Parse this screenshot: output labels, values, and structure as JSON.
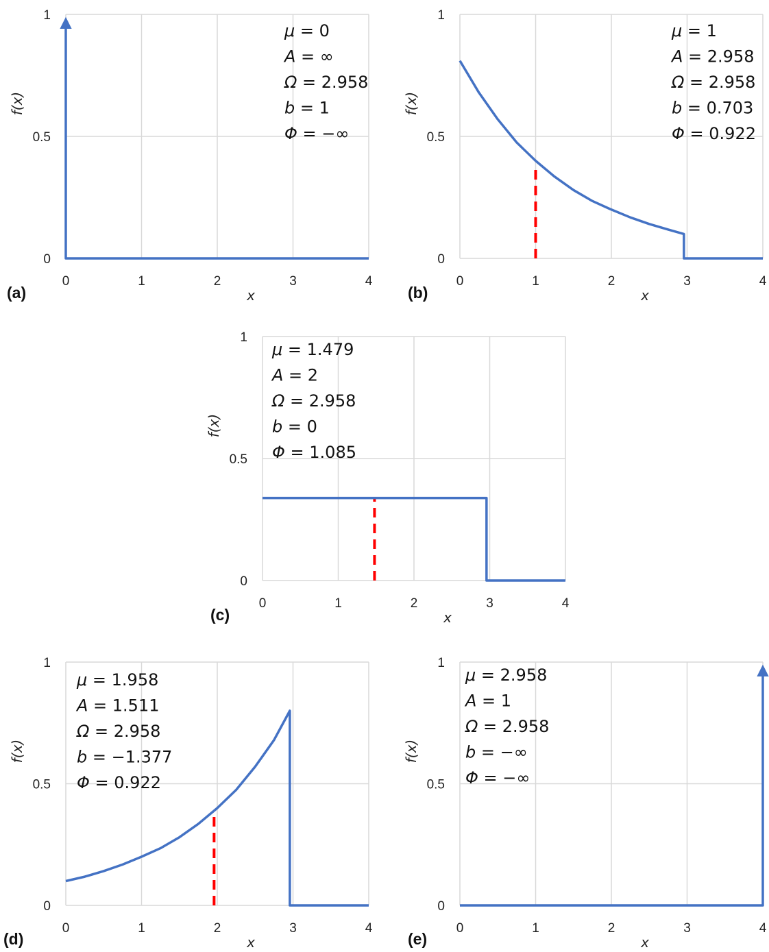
{
  "chart_data": [
    {
      "panel": "(a)",
      "type": "line",
      "xlabel": "x",
      "ylabel": "f(x)",
      "xlim": [
        0,
        4
      ],
      "ylim": [
        0,
        1
      ],
      "xticks": [
        "0",
        "1",
        "2",
        "3",
        "4"
      ],
      "yticks": [
        "0",
        "0.5",
        "1"
      ],
      "grid": true,
      "series": [
        {
          "x": [
            0,
            0,
            4
          ],
          "y": [
            0.965,
            0,
            0
          ],
          "arrow": "start"
        }
      ],
      "annotations": [
        {
          "symbol": "μ",
          "value": "= 0"
        },
        {
          "symbol": "A",
          "value": "= ∞"
        },
        {
          "symbol": "Ω",
          "value": "= 2.958"
        },
        {
          "symbol": "b",
          "value": "= 1"
        },
        {
          "symbol": "Φ",
          "value": "= −∞"
        }
      ],
      "annotation_position": "top-right"
    },
    {
      "panel": "(b)",
      "type": "line",
      "xlabel": "x",
      "ylabel": "f(x)",
      "xlim": [
        0,
        4
      ],
      "ylim": [
        0,
        1
      ],
      "xticks": [
        "0",
        "1",
        "2",
        "3",
        "4"
      ],
      "yticks": [
        "0",
        "0.5",
        "1"
      ],
      "grid": true,
      "series": [
        {
          "x": [
            0,
            0.25,
            0.5,
            0.75,
            1,
            1.25,
            1.5,
            1.75,
            2,
            2.25,
            2.5,
            2.75,
            2.958,
            2.958,
            4
          ],
          "y": [
            0.81,
            0.68,
            0.57,
            0.475,
            0.4,
            0.335,
            0.28,
            0.235,
            0.2,
            0.168,
            0.141,
            0.118,
            0.1,
            0,
            0
          ]
        }
      ],
      "marker_line": {
        "x": 1,
        "y": 0.375
      },
      "annotations": [
        {
          "symbol": "μ",
          "value": "= 1"
        },
        {
          "symbol": "A",
          "value": "= 2.958"
        },
        {
          "symbol": "Ω",
          "value": "= 2.958"
        },
        {
          "symbol": "b",
          "value": "= 0.703"
        },
        {
          "symbol": "Φ",
          "value": "= 0.922"
        }
      ],
      "annotation_position": "top-right"
    },
    {
      "panel": "(c)",
      "type": "line",
      "xlabel": "x",
      "ylabel": "f(x)",
      "xlim": [
        0,
        4
      ],
      "ylim": [
        0,
        1
      ],
      "xticks": [
        "0",
        "1",
        "2",
        "3",
        "4"
      ],
      "yticks": [
        "0",
        "0.5",
        "1"
      ],
      "grid": true,
      "series": [
        {
          "x": [
            0,
            2.958,
            2.958,
            4
          ],
          "y": [
            0.338,
            0.338,
            0,
            0
          ]
        }
      ],
      "marker_line": {
        "x": 1.479,
        "y": 0.338
      },
      "annotations": [
        {
          "symbol": "μ",
          "value": "= 1.479"
        },
        {
          "symbol": "A",
          "value": "= 2"
        },
        {
          "symbol": "Ω",
          "value": "= 2.958"
        },
        {
          "symbol": "b",
          "value": "= 0"
        },
        {
          "symbol": "Φ",
          "value": "= 1.085"
        }
      ],
      "annotation_position": "top-left"
    },
    {
      "panel": "(d)",
      "type": "line",
      "xlabel": "x",
      "ylabel": "f(x)",
      "xlim": [
        0,
        4
      ],
      "ylim": [
        0,
        1
      ],
      "xticks": [
        "0",
        "1",
        "2",
        "3",
        "4"
      ],
      "yticks": [
        "0",
        "0.5",
        "1"
      ],
      "grid": true,
      "series": [
        {
          "x": [
            0,
            0.25,
            0.5,
            0.75,
            1,
            1.25,
            1.5,
            1.75,
            2,
            2.25,
            2.5,
            2.75,
            2.958,
            2.958,
            4
          ],
          "y": [
            0.1,
            0.118,
            0.141,
            0.168,
            0.2,
            0.235,
            0.28,
            0.335,
            0.4,
            0.475,
            0.57,
            0.68,
            0.8,
            0,
            0
          ]
        }
      ],
      "marker_line": {
        "x": 1.958,
        "y": 0.375
      },
      "annotations": [
        {
          "symbol": "μ",
          "value": "= 1.958"
        },
        {
          "symbol": "A",
          "value": "= 1.511"
        },
        {
          "symbol": "Ω",
          "value": "= 2.958"
        },
        {
          "symbol": "b",
          "value": "= −1.377"
        },
        {
          "symbol": "Φ",
          "value": "= 0.922"
        }
      ],
      "annotation_position": "top-left"
    },
    {
      "panel": "(e)",
      "type": "line",
      "xlabel": "x",
      "ylabel": "f(x)",
      "xlim": [
        0,
        4
      ],
      "ylim": [
        0,
        1
      ],
      "xticks": [
        "0",
        "1",
        "2",
        "3",
        "4"
      ],
      "yticks": [
        "0",
        "0.5",
        "1"
      ],
      "grid": true,
      "series": [
        {
          "x": [
            0,
            4,
            4
          ],
          "y": [
            0,
            0,
            0.965
          ],
          "arrow": "end"
        }
      ],
      "annotations": [
        {
          "symbol": "μ",
          "value": "= 2.958"
        },
        {
          "symbol": "A",
          "value": "= 1"
        },
        {
          "symbol": "Ω",
          "value": "= 2.958"
        },
        {
          "symbol": "b",
          "value": "= −∞"
        },
        {
          "symbol": "Φ",
          "value": "= −∞"
        }
      ],
      "annotation_position": "top-left"
    }
  ],
  "colors": {
    "series": "#4472C4",
    "marker": "#FF0000",
    "grid": "#D9D9D9"
  }
}
